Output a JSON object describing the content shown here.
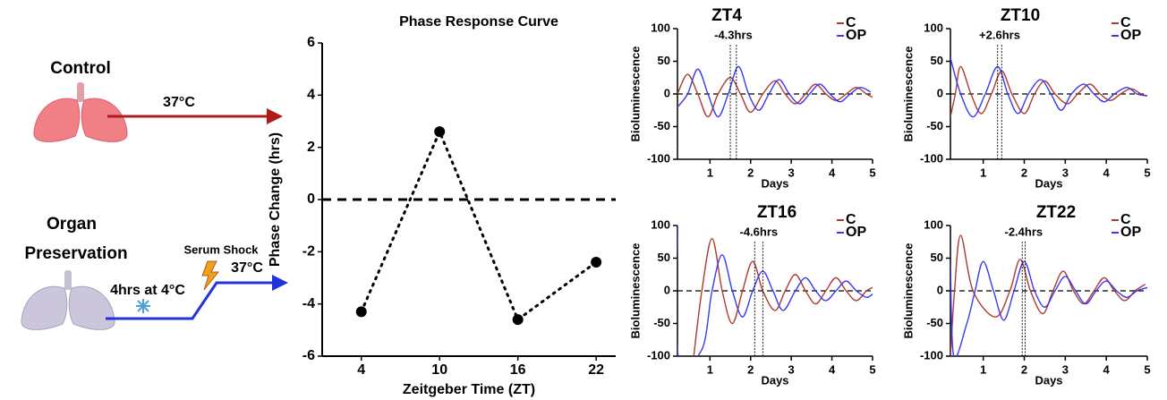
{
  "diagram": {
    "control_label": "Control",
    "control_temp": "37°C",
    "organ_label": [
      "Organ",
      "Preservation"
    ],
    "cold_label": "4hrs at 4°C",
    "shock_label": "Serum Shock",
    "warm_temp": "37°C"
  },
  "chart_data": [
    {
      "type": "line",
      "title": "Phase Response Curve",
      "x_label": "Zeitgeber Time (ZT)",
      "y_label": "Phase Change (hrs)",
      "x": [
        4,
        10,
        16,
        22
      ],
      "values": [
        -4.3,
        2.6,
        -4.6,
        -2.4
      ],
      "color": "#000000",
      "xlim": [
        1,
        23.5
      ],
      "xticks": [
        4,
        10,
        16,
        22
      ],
      "ylim": [
        -6,
        6
      ],
      "yticks": [
        -6,
        -4,
        -2,
        0,
        2,
        4,
        6
      ],
      "hline": 0
    },
    {
      "type": "line",
      "title": "ZT4",
      "annotation": "-4.3hrs",
      "x_label": "Days",
      "y_label": "Bioluminescence",
      "xlim": [
        0.2,
        5
      ],
      "xticks": [
        1,
        2,
        3,
        4,
        5
      ],
      "ylim": [
        -100,
        100
      ],
      "yticks": [
        -100,
        -50,
        0,
        50,
        100
      ],
      "hline": 0,
      "vlines": [
        1.5,
        1.65
      ],
      "series": [
        {
          "name": "C",
          "color": "#b03a2e",
          "x": [
            0.2,
            0.45,
            0.7,
            0.95,
            1.2,
            1.5,
            1.75,
            2.0,
            2.3,
            2.6,
            2.85,
            3.1,
            3.35,
            3.6,
            3.85,
            4.1,
            4.35,
            4.6,
            4.85,
            5.0
          ],
          "values": [
            0,
            30,
            0,
            -35,
            0,
            25,
            0,
            -28,
            0,
            20,
            0,
            -15,
            0,
            15,
            0,
            -10,
            0,
            10,
            0,
            -5
          ]
        },
        {
          "name": "OP",
          "color": "#3a3af0",
          "x": [
            0.2,
            0.45,
            0.7,
            0.95,
            1.2,
            1.45,
            1.7,
            1.95,
            2.2,
            2.45,
            2.7,
            2.95,
            3.2,
            3.45,
            3.7,
            3.95,
            4.2,
            4.45,
            4.7,
            4.95
          ],
          "values": [
            -20,
            0,
            38,
            0,
            -35,
            0,
            42,
            0,
            -25,
            0,
            22,
            0,
            -15,
            0,
            15,
            0,
            -12,
            0,
            10,
            3
          ]
        }
      ]
    },
    {
      "type": "line",
      "title": "ZT10",
      "annotation": "+2.6hrs",
      "x_label": "Days",
      "y_label": "Bioluminescence",
      "xlim": [
        0.2,
        5
      ],
      "xticks": [
        1,
        2,
        3,
        4,
        5
      ],
      "ylim": [
        -100,
        100
      ],
      "yticks": [
        -100,
        -50,
        0,
        50,
        100
      ],
      "hline": 0,
      "vlines": [
        1.35,
        1.45
      ],
      "series": [
        {
          "name": "C",
          "color": "#b03a2e",
          "x": [
            0.2,
            0.32,
            0.45,
            0.7,
            0.95,
            1.2,
            1.45,
            1.7,
            2.0,
            2.25,
            2.5,
            2.75,
            3.05,
            3.3,
            3.6,
            3.85,
            4.1,
            4.35,
            4.6,
            4.85,
            5.0
          ],
          "values": [
            -35,
            0,
            42,
            0,
            -30,
            0,
            35,
            0,
            -30,
            0,
            20,
            0,
            -15,
            0,
            15,
            0,
            -10,
            0,
            8,
            0,
            -3
          ]
        },
        {
          "name": "OP",
          "color": "#3a3af0",
          "x": [
            0.2,
            0.45,
            0.75,
            1.05,
            1.35,
            1.6,
            1.85,
            2.1,
            2.4,
            2.65,
            2.9,
            3.15,
            3.45,
            3.7,
            3.95,
            4.2,
            4.5,
            4.75,
            5.0
          ],
          "values": [
            55,
            0,
            -35,
            0,
            42,
            0,
            -30,
            0,
            22,
            0,
            -25,
            0,
            15,
            0,
            -12,
            0,
            10,
            0,
            -3
          ]
        }
      ]
    },
    {
      "type": "line",
      "title": "ZT16",
      "annotation": "-4.6hrs",
      "x_label": "Days",
      "y_label": "Bioluminescence",
      "xlim": [
        0.2,
        5
      ],
      "xticks": [
        1,
        2,
        3,
        4,
        5
      ],
      "ylim": [
        -100,
        100
      ],
      "yticks": [
        -100,
        -50,
        0,
        50,
        100
      ],
      "hline": 0,
      "vlines": [
        2.1,
        2.3
      ],
      "series": [
        {
          "name": "C",
          "color": "#b03a2e",
          "x": [
            0.6,
            0.8,
            1.05,
            1.3,
            1.55,
            1.8,
            2.05,
            2.3,
            2.6,
            2.85,
            3.1,
            3.35,
            3.6,
            3.85,
            4.1,
            4.35,
            4.6,
            4.85,
            5.0
          ],
          "values": [
            -100,
            0,
            80,
            0,
            -50,
            0,
            45,
            0,
            -30,
            0,
            25,
            0,
            -20,
            0,
            20,
            0,
            -15,
            0,
            5
          ]
        },
        {
          "name": "OP",
          "color": "#3a3af0",
          "x": [
            0.2,
            0.22,
            0.8,
            1.05,
            1.3,
            1.55,
            1.8,
            2.05,
            2.3,
            2.55,
            2.8,
            3.1,
            3.35,
            3.6,
            3.85,
            4.1,
            4.35,
            4.6,
            4.85,
            5.0
          ],
          "values": [
            100,
            -100,
            -90,
            0,
            55,
            0,
            -40,
            0,
            30,
            0,
            -30,
            0,
            20,
            0,
            -15,
            0,
            15,
            0,
            -10,
            -5
          ]
        }
      ]
    },
    {
      "type": "line",
      "title": "ZT22",
      "annotation": "-2.4hrs",
      "x_label": "Days",
      "y_label": "Bioluminescence",
      "xlim": [
        0.2,
        5
      ],
      "xticks": [
        1,
        2,
        3,
        4,
        5
      ],
      "ylim": [
        -100,
        100
      ],
      "yticks": [
        -100,
        -50,
        0,
        50,
        100
      ],
      "hline": 0,
      "vlines": [
        1.95,
        2.02
      ],
      "series": [
        {
          "name": "C",
          "color": "#b03a2e",
          "x": [
            0.2,
            0.3,
            0.45,
            0.75,
            1.3,
            1.65,
            1.9,
            2.15,
            2.45,
            2.7,
            2.95,
            3.2,
            3.45,
            3.7,
            3.95,
            4.2,
            4.45,
            4.7,
            4.95
          ],
          "values": [
            -100,
            0,
            85,
            0,
            -40,
            0,
            48,
            0,
            -35,
            0,
            30,
            0,
            -20,
            0,
            20,
            0,
            -15,
            0,
            10
          ]
        },
        {
          "name": "OP",
          "color": "#3a3af0",
          "x": [
            0.2,
            0.28,
            0.6,
            0.8,
            1.0,
            1.25,
            1.5,
            1.75,
            2.0,
            2.25,
            2.5,
            2.75,
            3.0,
            3.25,
            3.5,
            3.75,
            4.0,
            4.25,
            4.5,
            4.75,
            5.0
          ],
          "values": [
            40,
            -100,
            -50,
            0,
            45,
            0,
            -45,
            0,
            45,
            0,
            -25,
            0,
            22,
            0,
            -20,
            0,
            15,
            0,
            -10,
            0,
            5
          ]
        }
      ]
    }
  ]
}
